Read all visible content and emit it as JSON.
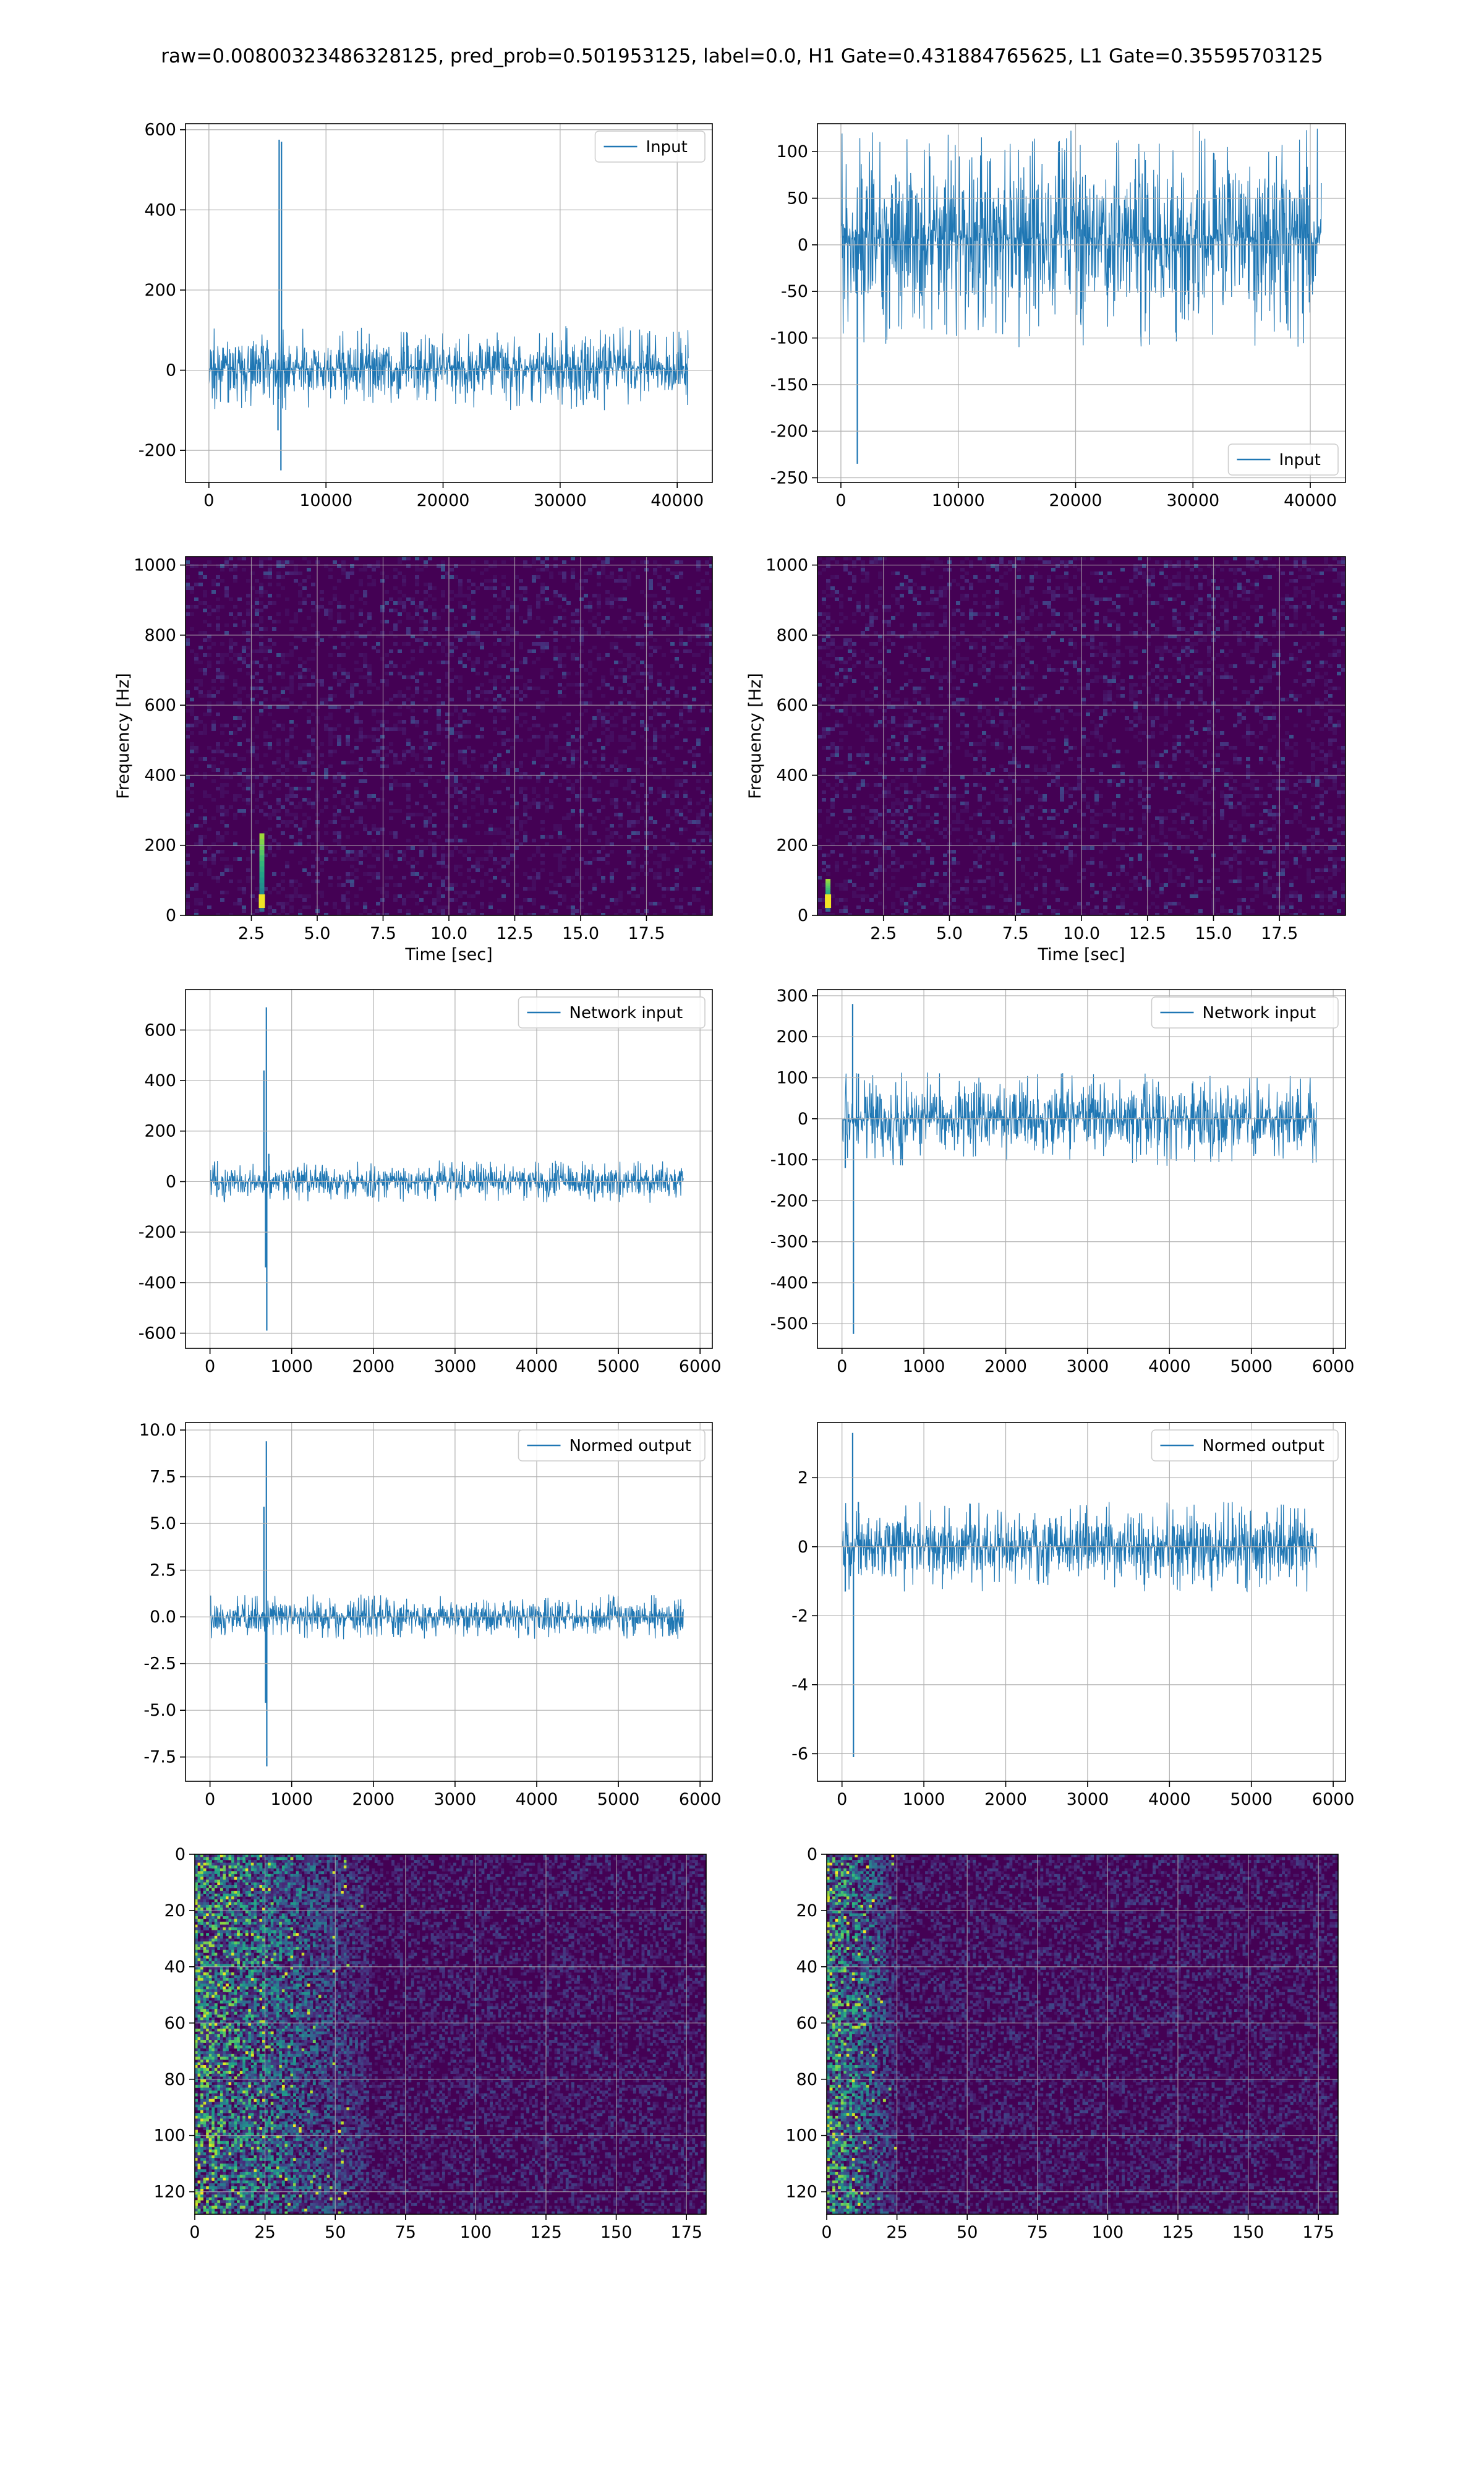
{
  "suptitle": "raw=0.00800323486328125, pred_prob=0.501953125, label=0.0, H1 Gate=0.431884765625, L1 Gate=0.35595703125",
  "colors": {
    "line": "#1f77b4",
    "grid": "#b0b0b0",
    "viridis": [
      "#440154",
      "#482878",
      "#3e4989",
      "#31688e",
      "#26828e",
      "#1f9e89",
      "#35b779",
      "#6ece58",
      "#b5de2b",
      "#fde725"
    ]
  },
  "chart_data": [
    {
      "id": "h1-input",
      "type": "line",
      "legend": "Input",
      "legend_loc": "upper right",
      "xlim": [
        -2000,
        43000
      ],
      "ylim": [
        -280,
        615
      ],
      "xticks": [
        0,
        10000,
        20000,
        30000,
        40000
      ],
      "yticks": [
        -200,
        0,
        200,
        400,
        600
      ],
      "signal": {
        "n": 40960,
        "noise_range": [
          -100,
          110
        ],
        "spikes": [
          [
            6000,
            575
          ],
          [
            6200,
            570
          ],
          [
            6150,
            -250
          ],
          [
            5900,
            -150
          ]
        ]
      }
    },
    {
      "id": "l1-input",
      "type": "line",
      "legend": "Input",
      "legend_loc": "lower right",
      "xlim": [
        -2000,
        43000
      ],
      "ylim": [
        -255,
        130
      ],
      "xticks": [
        0,
        10000,
        20000,
        30000,
        40000
      ],
      "yticks": [
        -250,
        -200,
        -150,
        -100,
        -50,
        0,
        50,
        100
      ],
      "signal": {
        "n": 40960,
        "noise_range": [
          -110,
          125
        ],
        "spikes": [
          [
            1400,
            -235
          ]
        ]
      }
    },
    {
      "id": "h1-spectrogram",
      "type": "heatmap",
      "cmap": "viridis",
      "xlim": [
        0,
        20
      ],
      "ylim": [
        0,
        1024
      ],
      "xticks": [
        2.5,
        5.0,
        7.5,
        10.0,
        12.5,
        15.0,
        17.5
      ],
      "yticks": [
        0,
        200,
        400,
        600,
        800,
        1000
      ],
      "xlabel": "Time [sec]",
      "ylabel": "Frequency [Hz]",
      "hotspots": [
        {
          "t": 2.9,
          "f_max": 220
        }
      ]
    },
    {
      "id": "l1-spectrogram",
      "type": "heatmap",
      "cmap": "viridis",
      "xlim": [
        0,
        20
      ],
      "ylim": [
        0,
        1024
      ],
      "xticks": [
        2.5,
        5.0,
        7.5,
        10.0,
        12.5,
        15.0,
        17.5
      ],
      "yticks": [
        0,
        200,
        400,
        600,
        800,
        1000
      ],
      "xlabel": "Time [sec]",
      "ylabel": "Frequency [Hz]",
      "hotspots": [
        {
          "t": 0.4,
          "f_max": 90
        }
      ]
    },
    {
      "id": "h1-network-input",
      "type": "line",
      "legend": "Network input",
      "legend_loc": "upper right",
      "xlim": [
        -300,
        6150
      ],
      "ylim": [
        -660,
        760
      ],
      "xticks": [
        0,
        1000,
        2000,
        3000,
        4000,
        5000,
        6000
      ],
      "yticks": [
        -600,
        -400,
        -200,
        0,
        200,
        400,
        600
      ],
      "signal": {
        "n": 5800,
        "noise_range": [
          -85,
          85
        ],
        "spikes": [
          [
            660,
            440
          ],
          [
            680,
            -340
          ],
          [
            690,
            690
          ],
          [
            695,
            -590
          ],
          [
            720,
            110
          ]
        ]
      }
    },
    {
      "id": "l1-network-input",
      "type": "line",
      "legend": "Network input",
      "legend_loc": "upper right",
      "xlim": [
        -300,
        6150
      ],
      "ylim": [
        -560,
        315
      ],
      "xticks": [
        0,
        1000,
        2000,
        3000,
        4000,
        5000,
        6000
      ],
      "yticks": [
        -500,
        -400,
        -300,
        -200,
        -100,
        0,
        100,
        200,
        300
      ],
      "signal": {
        "n": 5800,
        "noise_range": [
          -115,
          115
        ],
        "spikes": [
          [
            130,
            280
          ],
          [
            140,
            -525
          ],
          [
            40,
            -120
          ],
          [
            200,
            110
          ]
        ]
      }
    },
    {
      "id": "h1-normed-output",
      "type": "line",
      "legend": "Normed output",
      "legend_loc": "upper right",
      "xlim": [
        -300,
        6150
      ],
      "ylim": [
        -8.8,
        10.4
      ],
      "xticks": [
        0,
        1000,
        2000,
        3000,
        4000,
        5000,
        6000
      ],
      "yticks": [
        -7.5,
        -5.0,
        -2.5,
        0.0,
        2.5,
        5.0,
        7.5,
        10.0
      ],
      "signal": {
        "n": 5800,
        "noise_range": [
          -1.2,
          1.2
        ],
        "spikes": [
          [
            660,
            5.9
          ],
          [
            680,
            -4.6
          ],
          [
            690,
            9.4
          ],
          [
            695,
            -8.0
          ]
        ]
      }
    },
    {
      "id": "l1-normed-output",
      "type": "line",
      "legend": "Normed output",
      "legend_loc": "upper right",
      "xlim": [
        -300,
        6150
      ],
      "ylim": [
        -6.8,
        3.6
      ],
      "xticks": [
        0,
        1000,
        2000,
        3000,
        4000,
        5000,
        6000
      ],
      "yticks": [
        -6,
        -4,
        -2,
        0,
        2
      ],
      "signal": {
        "n": 5800,
        "noise_range": [
          -1.3,
          1.3
        ],
        "spikes": [
          [
            130,
            3.3
          ],
          [
            140,
            -6.1
          ],
          [
            40,
            -1.3
          ],
          [
            200,
            1.3
          ]
        ]
      }
    },
    {
      "id": "h1-feature-map",
      "type": "heatmap",
      "cmap": "viridis",
      "invert_y": true,
      "xlim": [
        0,
        182
      ],
      "ylim": [
        128,
        0
      ],
      "xticks": [
        0,
        25,
        50,
        75,
        100,
        125,
        150,
        175
      ],
      "yticks": [
        0,
        20,
        40,
        60,
        80,
        100,
        120
      ],
      "active_cols": 62
    },
    {
      "id": "l1-feature-map",
      "type": "heatmap",
      "cmap": "viridis",
      "invert_y": true,
      "xlim": [
        0,
        182
      ],
      "ylim": [
        128,
        0
      ],
      "xticks": [
        0,
        25,
        50,
        75,
        100,
        125,
        150,
        175
      ],
      "yticks": [
        0,
        20,
        40,
        60,
        80,
        100,
        120
      ],
      "active_cols": 25
    }
  ]
}
